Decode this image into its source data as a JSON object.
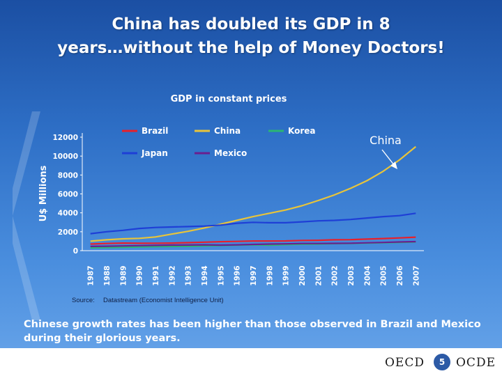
{
  "slide": {
    "title_line1": "China has doubled its GDP in 8",
    "title_line2": "years…without the help of Money Doctors!",
    "footnote": "Chinese growth rates has been higher than those observed in Brazil and Mexico during their glorious years.",
    "footer_left": "OECD",
    "footer_right": "OCDE",
    "page_number": "5"
  },
  "chart_data": {
    "type": "line",
    "title": "GDP in constant prices",
    "ylabel": "U$ Millions",
    "xlabel": "",
    "ylim": [
      0,
      12000
    ],
    "yticks": [
      0,
      2000,
      4000,
      6000,
      8000,
      10000,
      12000
    ],
    "grid": false,
    "legend_position": "top",
    "annotation": "China",
    "source_label": "Source:",
    "source_text": "Datastream (Economist Intelligence Unit)",
    "categories": [
      "1987",
      "1988",
      "1989",
      "1990",
      "1991",
      "1992",
      "1993",
      "1994",
      "1995",
      "1996",
      "1997",
      "1998",
      "1999",
      "2000",
      "2001",
      "2002",
      "2003",
      "2004",
      "2005",
      "2006",
      "2007"
    ],
    "series": [
      {
        "name": "Brazil",
        "color": "#e8202a",
        "values": [
          700,
          760,
          800,
          780,
          790,
          800,
          850,
          900,
          950,
          980,
          1020,
          1020,
          1030,
          1080,
          1100,
          1150,
          1160,
          1220,
          1280,
          1350,
          1430
        ]
      },
      {
        "name": "China",
        "color": "#e8c43a",
        "values": [
          1000,
          1150,
          1250,
          1300,
          1450,
          1750,
          2050,
          2400,
          2800,
          3200,
          3600,
          3950,
          4300,
          4750,
          5300,
          5900,
          6600,
          7400,
          8400,
          9600,
          11000
        ]
      },
      {
        "name": "Korea",
        "color": "#2bb673",
        "values": [
          300,
          330,
          350,
          390,
          420,
          440,
          460,
          500,
          540,
          580,
          610,
          580,
          630,
          680,
          700,
          740,
          760,
          800,
          830,
          870,
          920
        ]
      },
      {
        "name": "Japan",
        "color": "#1e3fd6",
        "values": [
          1800,
          2000,
          2150,
          2350,
          2450,
          2500,
          2550,
          2600,
          2700,
          2900,
          3000,
          2950,
          2950,
          3050,
          3150,
          3200,
          3300,
          3450,
          3600,
          3700,
          3950
        ]
      },
      {
        "name": "Mexico",
        "color": "#6a1f8f",
        "values": [
          450,
          470,
          500,
          530,
          560,
          590,
          600,
          620,
          590,
          620,
          660,
          700,
          720,
          760,
          760,
          770,
          790,
          830,
          870,
          920,
          960
        ]
      }
    ]
  }
}
